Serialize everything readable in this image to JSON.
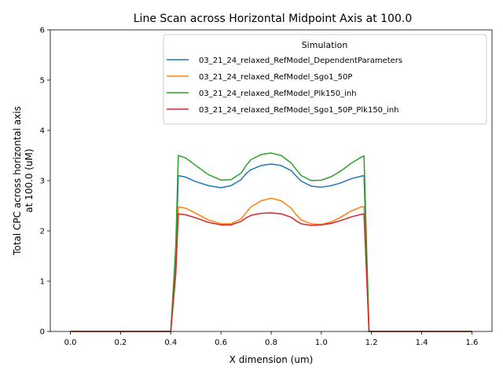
{
  "chart_data": {
    "type": "line",
    "title": "Line Scan across Horizontal Midpoint Axis at 100.0",
    "xlabel": "X dimension (um)",
    "ylabel_line1": "Total CPC across horizontal axis",
    "ylabel_line2": "at 100.0 (uM)",
    "xlim": [
      -0.08,
      1.68
    ],
    "ylim": [
      0,
      6
    ],
    "xticks": [
      0.0,
      0.2,
      0.4,
      0.6,
      0.8,
      1.0,
      1.2,
      1.4,
      1.6
    ],
    "xtick_labels": [
      "0.0",
      "0.2",
      "0.4",
      "0.6",
      "0.8",
      "1.0",
      "1.2",
      "1.4",
      "1.6"
    ],
    "yticks": [
      0,
      1,
      2,
      3,
      4,
      5,
      6
    ],
    "ytick_labels": [
      "0",
      "1",
      "2",
      "3",
      "4",
      "5",
      "6"
    ],
    "grid": false,
    "legend": {
      "title": "Simulation",
      "placement": "upper-right"
    },
    "x": [
      0.0,
      0.4,
      0.42,
      0.43,
      0.46,
      0.5,
      0.55,
      0.6,
      0.64,
      0.68,
      0.7,
      0.72,
      0.76,
      0.8,
      0.84,
      0.88,
      0.9,
      0.92,
      0.96,
      1.0,
      1.04,
      1.08,
      1.12,
      1.16,
      1.17,
      1.19,
      1.6
    ],
    "series": [
      {
        "name": "03_21_24_relaxed_RefModel_DependentParameters",
        "color": "#1f77b4",
        "values": [
          0,
          0,
          1.5,
          3.1,
          3.07,
          2.98,
          2.9,
          2.86,
          2.9,
          3.02,
          3.14,
          3.22,
          3.3,
          3.33,
          3.3,
          3.2,
          3.09,
          2.99,
          2.89,
          2.87,
          2.9,
          2.96,
          3.04,
          3.09,
          3.1,
          0,
          0
        ]
      },
      {
        "name": "03_21_24_relaxed_RefModel_Sgo1_50P",
        "color": "#ff7f0e",
        "values": [
          0,
          0,
          1.2,
          2.48,
          2.45,
          2.35,
          2.22,
          2.14,
          2.14,
          2.24,
          2.36,
          2.48,
          2.6,
          2.65,
          2.6,
          2.45,
          2.32,
          2.22,
          2.14,
          2.13,
          2.18,
          2.28,
          2.4,
          2.48,
          2.48,
          0,
          0
        ]
      },
      {
        "name": "03_21_24_relaxed_RefModel_Plk150_inh",
        "color": "#2ca02c",
        "values": [
          0,
          0,
          1.7,
          3.5,
          3.45,
          3.3,
          3.12,
          3.01,
          3.02,
          3.15,
          3.3,
          3.42,
          3.52,
          3.55,
          3.5,
          3.35,
          3.22,
          3.1,
          3.0,
          3.01,
          3.08,
          3.2,
          3.35,
          3.47,
          3.49,
          0,
          0
        ]
      },
      {
        "name": "03_21_24_relaxed_RefModel_Sgo1_50P_Plk150_inh",
        "color": "#d62728",
        "values": [
          0,
          0,
          1.15,
          2.34,
          2.32,
          2.26,
          2.17,
          2.12,
          2.12,
          2.19,
          2.26,
          2.31,
          2.35,
          2.36,
          2.34,
          2.27,
          2.2,
          2.14,
          2.11,
          2.12,
          2.15,
          2.21,
          2.28,
          2.33,
          2.34,
          0,
          0
        ]
      }
    ]
  }
}
